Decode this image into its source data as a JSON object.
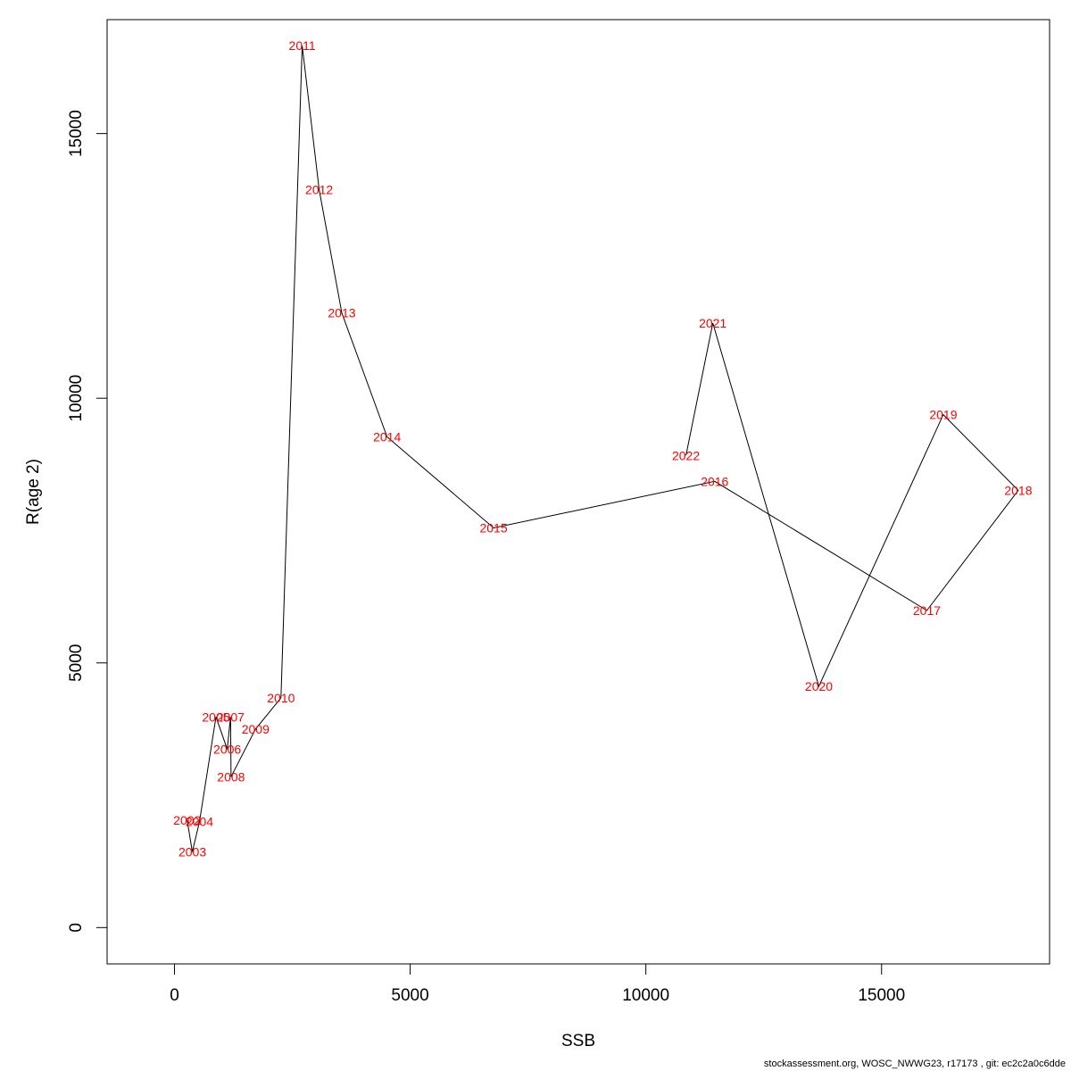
{
  "chart_data": {
    "type": "line",
    "xlabel": "SSB",
    "ylabel": "R(age 2)",
    "xlim": [
      -1429,
      18564
    ],
    "ylim": [
      -686,
      17152
    ],
    "xticks": [
      0,
      5000,
      10000,
      15000
    ],
    "yticks": [
      0,
      5000,
      10000,
      15000
    ],
    "line_color": "#000000",
    "label_color": "#ff0000",
    "points": [
      {
        "label": "2002",
        "x": 270,
        "y": 2030
      },
      {
        "label": "2003",
        "x": 380,
        "y": 1430
      },
      {
        "label": "2004",
        "x": 530,
        "y": 2000
      },
      {
        "label": "2005",
        "x": 880,
        "y": 3980
      },
      {
        "label": "2006",
        "x": 1120,
        "y": 3370
      },
      {
        "label": "2007",
        "x": 1190,
        "y": 3980
      },
      {
        "label": "2008",
        "x": 1200,
        "y": 2850
      },
      {
        "label": "2009",
        "x": 1720,
        "y": 3750
      },
      {
        "label": "2010",
        "x": 2260,
        "y": 4340
      },
      {
        "label": "2011",
        "x": 2710,
        "y": 16660
      },
      {
        "label": "2012",
        "x": 3070,
        "y": 13940
      },
      {
        "label": "2013",
        "x": 3550,
        "y": 11610
      },
      {
        "label": "2014",
        "x": 4510,
        "y": 9270
      },
      {
        "label": "2015",
        "x": 6770,
        "y": 7550
      },
      {
        "label": "2016",
        "x": 11460,
        "y": 8430
      },
      {
        "label": "2017",
        "x": 15960,
        "y": 5990
      },
      {
        "label": "2018",
        "x": 17900,
        "y": 8260
      },
      {
        "label": "2019",
        "x": 16310,
        "y": 9690
      },
      {
        "label": "2020",
        "x": 13670,
        "y": 4560
      },
      {
        "label": "2021",
        "x": 11420,
        "y": 11420
      },
      {
        "label": "2022",
        "x": 10850,
        "y": 8920
      }
    ]
  },
  "footer": {
    "text": "stockassessment.org, WOSC_NWWG23, r17173 , git: ec2c2a0c6dde"
  }
}
